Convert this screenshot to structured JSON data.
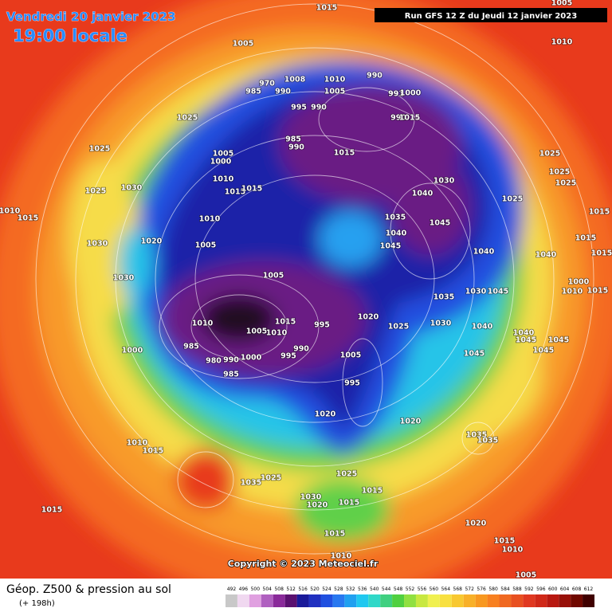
{
  "header": {
    "date": "Vendredi 20 janvier 2023",
    "time": "19:00 locale",
    "run": "Run GFS 12 Z du Jeudi 12 janvier 2023"
  },
  "footer": {
    "copyright": "Copyright © 2023 Meteociel.fr",
    "title": "Géop. Z500 & pression au sol",
    "subtitle": "(+ 198h)"
  },
  "legend": {
    "values": [
      492,
      496,
      500,
      504,
      508,
      512,
      516,
      520,
      524,
      528,
      532,
      536,
      540,
      544,
      548,
      552,
      556,
      560,
      564,
      568,
      572,
      576,
      580,
      584,
      588,
      592,
      596,
      600,
      604,
      608,
      612
    ],
    "colors": [
      "#c8c8c8",
      "#f0d8f0",
      "#e0a0e0",
      "#b060c0",
      "#8a2a9a",
      "#5a1070",
      "#1a1a9a",
      "#2030c0",
      "#2050e0",
      "#2878f0",
      "#20a0f0",
      "#20c8f0",
      "#30d8c8",
      "#40d080",
      "#50d040",
      "#90e040",
      "#c8e840",
      "#f0f050",
      "#f8e040",
      "#f8c830",
      "#f8b028",
      "#f89820",
      "#f88020",
      "#f06820",
      "#e85020",
      "#e03820",
      "#d02818",
      "#b81810",
      "#981008",
      "#700800",
      "#400000"
    ]
  },
  "isobars": [
    1015,
    1005,
    1010,
    1005,
    1010,
    1005,
    1008,
    990,
    995,
    990,
    990,
    985,
    970,
    991,
    1000,
    990,
    1015,
    1025,
    1025,
    985,
    990,
    1015,
    1025,
    1025,
    1025,
    1005,
    1000,
    1010,
    1015,
    1015,
    1025,
    1030,
    1030,
    1040,
    1025,
    1010,
    1015,
    1010,
    1035,
    1045,
    1015,
    1040,
    1030,
    1020,
    1005,
    1045,
    1040,
    1040,
    1015,
    1015,
    1030,
    1005,
    1000,
    1010,
    1015,
    1035,
    1030,
    1045,
    1020,
    1025,
    1030,
    1040,
    1010,
    1015,
    995,
    1005,
    1010,
    1040,
    1045,
    1045,
    1045,
    1000,
    985,
    990,
    995,
    1000,
    990,
    980,
    1005,
    1045,
    985,
    995,
    1020,
    1020,
    1035,
    1035,
    1010,
    1015,
    1025,
    1035,
    1025,
    1015,
    1030,
    1020,
    1015,
    1015,
    1020,
    1015,
    1015,
    1010,
    1010,
    1005
  ]
}
